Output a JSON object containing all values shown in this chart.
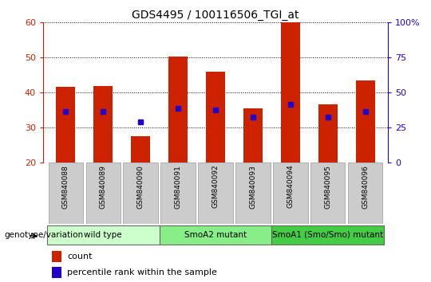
{
  "title": "GDS4495 / 100116506_TGI_at",
  "samples": [
    "GSM840088",
    "GSM840089",
    "GSM840090",
    "GSM840091",
    "GSM840092",
    "GSM840093",
    "GSM840094",
    "GSM840095",
    "GSM840096"
  ],
  "counts": [
    41.5,
    41.8,
    27.5,
    50.2,
    46.0,
    35.5,
    60.0,
    36.5,
    43.5
  ],
  "percentile_ranks": [
    34.5,
    34.5,
    31.5,
    35.5,
    35.0,
    33.0,
    36.5,
    33.0,
    34.5
  ],
  "ylim_left": [
    20,
    60
  ],
  "ylim_right": [
    0,
    100
  ],
  "yticks_left": [
    20,
    30,
    40,
    50,
    60
  ],
  "yticks_right": [
    0,
    25,
    50,
    75,
    100
  ],
  "bar_color": "#CC2200",
  "percentile_color": "#2200CC",
  "bar_width": 0.5,
  "groups": [
    {
      "label": "wild type",
      "start": 0,
      "end": 3,
      "color": "#CCFFCC"
    },
    {
      "label": "SmoA2 mutant",
      "start": 3,
      "end": 6,
      "color": "#88EE88"
    },
    {
      "label": "SmoA1 (Smo/Smo) mutant",
      "start": 6,
      "end": 9,
      "color": "#44CC44"
    }
  ],
  "legend_count_label": "count",
  "legend_percentile_label": "percentile rank within the sample",
  "xlabel_annotation": "genotype/variation",
  "bar_bottom": 20,
  "left_tick_color": "#CC2200",
  "right_tick_color": "#2200CC",
  "grid_color": "#000000",
  "sample_box_color": "#CCCCCC",
  "sample_box_edge": "#999999"
}
